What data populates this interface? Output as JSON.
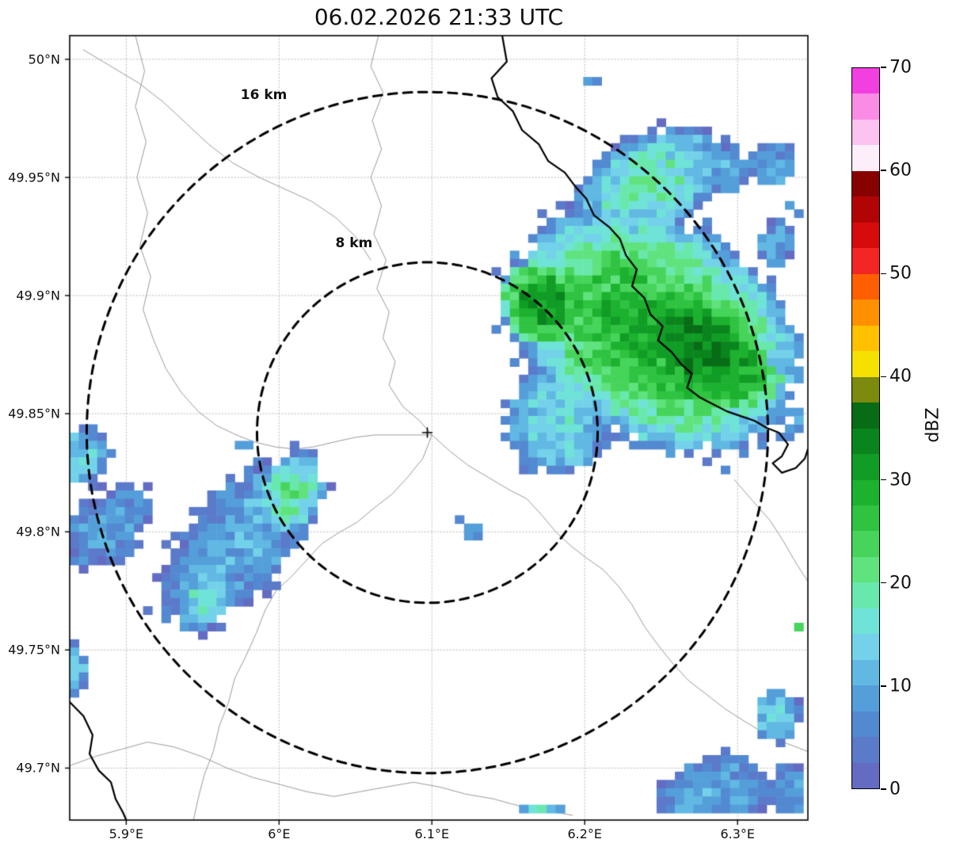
{
  "title": "06.02.2026 21:33 UTC",
  "chart_data": {
    "type": "heatmap",
    "title": "06.02.2026 21:33 UTC",
    "units": "dBZ",
    "grid": true,
    "extent": {
      "lon_min": 5.863,
      "lon_max": 6.346,
      "lat_min": 49.678,
      "lat_max": 50.01
    },
    "x_ticks": [
      {
        "value": 5.9,
        "label": "5.9°E"
      },
      {
        "value": 6.0,
        "label": "6°E"
      },
      {
        "value": 6.1,
        "label": "6.1°E"
      },
      {
        "value": 6.2,
        "label": "6.2°E"
      },
      {
        "value": 6.3,
        "label": "6.3°E"
      }
    ],
    "y_ticks": [
      {
        "value": 50.0,
        "label": "50°N"
      },
      {
        "value": 49.95,
        "label": "49.95°N"
      },
      {
        "value": 49.9,
        "label": "49.9°N"
      },
      {
        "value": 49.85,
        "label": "49.85°N"
      },
      {
        "value": 49.8,
        "label": "49.8°N"
      },
      {
        "value": 49.75,
        "label": "49.75°N"
      },
      {
        "value": 49.7,
        "label": "49.7°N"
      }
    ],
    "radar_center": {
      "lon": 6.097,
      "lat": 49.842,
      "marker": "+"
    },
    "range_rings": [
      {
        "km": 8,
        "label": "8 km",
        "label_lon": 6.049,
        "label_lat": 49.922
      },
      {
        "km": 16,
        "label": "16 km",
        "label_lon": 5.99,
        "label_lat": 49.985
      }
    ],
    "colorbar": {
      "label": "dBZ",
      "min": 0,
      "max": 70,
      "ticks": [
        {
          "value": 0,
          "label": "0"
        },
        {
          "value": 10,
          "label": "10"
        },
        {
          "value": 20,
          "label": "20"
        },
        {
          "value": 30,
          "label": "30"
        },
        {
          "value": 40,
          "label": "40"
        },
        {
          "value": 50,
          "label": "50"
        },
        {
          "value": 60,
          "label": "60"
        },
        {
          "value": 70,
          "label": "70"
        }
      ],
      "colors": [
        "#636bc2",
        "#5b7aca",
        "#5389d1",
        "#549fda",
        "#60b8e3",
        "#73d2ea",
        "#6fe3d7",
        "#69e8ad",
        "#60e37e",
        "#47d45b",
        "#2fc341",
        "#1cb12f",
        "#119c26",
        "#0a851d",
        "#076c15",
        "#7c8a0e",
        "#f5e000",
        "#ffc000",
        "#ff9000",
        "#ff5f00",
        "#f42525",
        "#d70b0b",
        "#b10505",
        "#870101",
        "#fdeffa",
        "#fcc3f0",
        "#fb8ce6",
        "#f23fe0"
      ]
    },
    "cell_size_deg": {
      "dlon": 0.006,
      "dlat": 0.0035
    },
    "echo_clusters": [
      {
        "name": "ne-storm-main",
        "lon": 6.245,
        "lat": 49.885,
        "rx": 0.1,
        "ry": 0.05,
        "rot": -12,
        "base": 5,
        "peak": 29
      },
      {
        "name": "ne-storm-core-east",
        "lon": 6.278,
        "lat": 49.876,
        "rx": 0.048,
        "ry": 0.024,
        "rot": -15,
        "base": 18,
        "peak": 35
      },
      {
        "name": "ne-storm-core-west",
        "lon": 6.172,
        "lat": 49.896,
        "rx": 0.026,
        "ry": 0.018,
        "rot": -10,
        "base": 16,
        "peak": 33
      },
      {
        "name": "ne-storm-sw-edge",
        "lon": 6.183,
        "lat": 49.847,
        "rx": 0.036,
        "ry": 0.024,
        "rot": 0,
        "base": 3,
        "peak": 16
      },
      {
        "name": "ne-storm-north-ext",
        "lon": 6.242,
        "lat": 49.947,
        "rx": 0.052,
        "ry": 0.022,
        "rot": 15,
        "base": 3,
        "peak": 19
      },
      {
        "name": "ne-top-patch-1",
        "lon": 6.292,
        "lat": 49.953,
        "rx": 0.016,
        "ry": 0.011,
        "rot": 0,
        "base": 3,
        "peak": 10
      },
      {
        "name": "ne-top-patch-2",
        "lon": 6.323,
        "lat": 49.955,
        "rx": 0.014,
        "ry": 0.01,
        "rot": 0,
        "base": 3,
        "peak": 9
      },
      {
        "name": "ne-right-patch",
        "lon": 6.325,
        "lat": 49.922,
        "rx": 0.013,
        "ry": 0.01,
        "rot": 0,
        "base": 3,
        "peak": 9
      },
      {
        "name": "west-band",
        "lon": 5.975,
        "lat": 49.797,
        "rx": 0.062,
        "ry": 0.026,
        "rot": 30,
        "base": 2,
        "peak": 11
      },
      {
        "name": "west-band-green",
        "lon": 6.008,
        "lat": 49.816,
        "rx": 0.022,
        "ry": 0.015,
        "rot": 25,
        "base": 8,
        "peak": 21
      },
      {
        "name": "west-band-cyan",
        "lon": 5.952,
        "lat": 49.772,
        "rx": 0.018,
        "ry": 0.012,
        "rot": 20,
        "base": 6,
        "peak": 17
      },
      {
        "name": "west-left-ext",
        "lon": 5.888,
        "lat": 49.802,
        "rx": 0.03,
        "ry": 0.016,
        "rot": 20,
        "base": 2,
        "peak": 9
      },
      {
        "name": "left-edge-patch",
        "lon": 5.87,
        "lat": 49.832,
        "rx": 0.019,
        "ry": 0.013,
        "rot": 0,
        "base": 3,
        "peak": 15
      },
      {
        "name": "left-edge-small",
        "lon": 5.864,
        "lat": 49.742,
        "rx": 0.012,
        "ry": 0.011,
        "rot": 0,
        "base": 3,
        "peak": 13
      },
      {
        "name": "south-east-cluster",
        "lon": 6.282,
        "lat": 49.688,
        "rx": 0.04,
        "ry": 0.018,
        "rot": 8,
        "base": 2,
        "peak": 10
      },
      {
        "name": "south-east-corner",
        "lon": 6.335,
        "lat": 49.69,
        "rx": 0.015,
        "ry": 0.013,
        "rot": 0,
        "base": 2,
        "peak": 9
      },
      {
        "name": "right-lower-patch",
        "lon": 6.325,
        "lat": 49.722,
        "rx": 0.016,
        "ry": 0.012,
        "rot": 0,
        "base": 3,
        "peak": 14
      }
    ],
    "echo_cells": [
      [
        6.168,
        49.682,
        16
      ],
      [
        6.174,
        49.682,
        19
      ],
      [
        6.18,
        49.682,
        10
      ],
      [
        6.186,
        49.682,
        8
      ],
      [
        6.162,
        49.682,
        8
      ],
      [
        6.122,
        49.803,
        9
      ],
      [
        6.128,
        49.803,
        8
      ],
      [
        6.122,
        49.799,
        8
      ],
      [
        6.128,
        49.8,
        7
      ],
      [
        6.118,
        49.806,
        7
      ],
      [
        6.342,
        49.76,
        24
      ],
      [
        6.342,
        49.852,
        9
      ],
      [
        6.342,
        49.846,
        12
      ],
      [
        6.336,
        49.842,
        8
      ],
      [
        6.286,
        49.962,
        8
      ],
      [
        6.292,
        49.96,
        9
      ],
      [
        6.205,
        49.99,
        8
      ],
      [
        6.211,
        49.99,
        7
      ],
      [
        5.976,
        49.838,
        8
      ],
      [
        5.982,
        49.836,
        9
      ],
      [
        6.332,
        49.938,
        8
      ],
      [
        6.34,
        49.934,
        7
      ]
    ],
    "map_lines": {
      "gray": [
        [
          [
            6.065,
            50.01
          ],
          [
            6.06,
            49.997
          ],
          [
            6.068,
            49.986
          ],
          [
            6.061,
            49.974
          ],
          [
            6.067,
            49.962
          ],
          [
            6.06,
            49.95
          ],
          [
            6.067,
            49.938
          ],
          [
            6.062,
            49.926
          ],
          [
            6.07,
            49.915
          ],
          [
            6.064,
            49.903
          ],
          [
            6.072,
            49.893
          ],
          [
            6.068,
            49.882
          ],
          [
            6.076,
            49.872
          ],
          [
            6.072,
            49.862
          ],
          [
            6.081,
            49.853
          ],
          [
            6.092,
            49.847
          ],
          [
            6.1,
            49.841
          ],
          [
            6.094,
            49.831
          ],
          [
            6.084,
            49.823
          ],
          [
            6.074,
            49.816
          ],
          [
            6.062,
            49.81
          ],
          [
            6.051,
            49.804
          ],
          [
            6.04,
            49.8
          ],
          [
            6.028,
            49.795
          ],
          [
            6.018,
            49.788
          ],
          [
            6.008,
            49.781
          ],
          [
            5.998,
            49.775
          ],
          [
            5.991,
            49.767
          ],
          [
            5.985,
            49.757
          ],
          [
            5.978,
            49.747
          ],
          [
            5.971,
            49.738
          ],
          [
            5.967,
            49.728
          ],
          [
            5.961,
            49.718
          ],
          [
            5.957,
            49.707
          ],
          [
            5.951,
            49.697
          ],
          [
            5.947,
            49.687
          ],
          [
            5.944,
            49.678
          ]
        ],
        [
          [
            5.872,
            50.004
          ],
          [
            5.89,
            49.997
          ],
          [
            5.908,
            49.99
          ],
          [
            5.924,
            49.982
          ],
          [
            5.939,
            49.973
          ],
          [
            5.954,
            49.964
          ],
          [
            5.97,
            49.956
          ],
          [
            5.987,
            49.95
          ],
          [
            6.004,
            49.945
          ],
          [
            6.021,
            49.94
          ],
          [
            6.037,
            49.933
          ],
          [
            6.05,
            49.925
          ],
          [
            6.06,
            49.915
          ]
        ],
        [
          [
            5.906,
            50.01
          ],
          [
            5.912,
            49.995
          ],
          [
            5.906,
            49.98
          ],
          [
            5.913,
            49.965
          ],
          [
            5.907,
            49.95
          ],
          [
            5.914,
            49.935
          ],
          [
            5.909,
            49.921
          ],
          [
            5.916,
            49.908
          ],
          [
            5.911,
            49.894
          ],
          [
            5.918,
            49.881
          ],
          [
            5.926,
            49.869
          ],
          [
            5.936,
            49.859
          ],
          [
            5.947,
            49.851
          ],
          [
            5.959,
            49.845
          ],
          [
            5.972,
            49.841
          ],
          [
            5.984,
            49.838
          ],
          [
            5.997,
            49.836
          ],
          [
            6.01,
            49.835
          ],
          [
            6.023,
            49.836
          ],
          [
            6.036,
            49.838
          ],
          [
            6.05,
            49.84
          ],
          [
            6.063,
            49.841
          ],
          [
            6.076,
            49.841
          ],
          [
            6.089,
            49.841
          ],
          [
            6.1,
            49.841
          ]
        ],
        [
          [
            6.1,
            49.841
          ],
          [
            6.112,
            49.834
          ],
          [
            6.124,
            49.828
          ],
          [
            6.137,
            49.823
          ],
          [
            6.15,
            49.818
          ],
          [
            6.162,
            49.814
          ],
          [
            6.172,
            49.807
          ],
          [
            6.181,
            49.8
          ],
          [
            6.191,
            49.794
          ],
          [
            6.201,
            49.789
          ],
          [
            6.212,
            49.784
          ],
          [
            6.222,
            49.777
          ],
          [
            6.231,
            49.769
          ],
          [
            6.239,
            49.76
          ],
          [
            6.248,
            49.752
          ],
          [
            6.258,
            49.744
          ],
          [
            6.268,
            49.737
          ],
          [
            6.28,
            49.731
          ],
          [
            6.292,
            49.725
          ],
          [
            6.304,
            49.72
          ],
          [
            6.317,
            49.715
          ],
          [
            6.33,
            49.711
          ],
          [
            6.346,
            49.707
          ]
        ],
        [
          [
            5.863,
            49.701
          ],
          [
            5.88,
            49.705
          ],
          [
            5.897,
            49.708
          ],
          [
            5.914,
            49.711
          ],
          [
            5.931,
            49.709
          ],
          [
            5.949,
            49.705
          ],
          [
            5.966,
            49.7
          ],
          [
            5.983,
            49.696
          ],
          [
            6.001,
            49.693
          ],
          [
            6.018,
            49.69
          ],
          [
            6.036,
            49.688
          ],
          [
            6.053,
            49.69
          ],
          [
            6.07,
            49.692
          ],
          [
            6.088,
            49.694
          ],
          [
            6.105,
            49.692
          ],
          [
            6.122,
            49.689
          ],
          [
            6.14,
            49.687
          ],
          [
            6.157,
            49.684
          ],
          [
            6.175,
            49.682
          ],
          [
            6.192,
            49.68
          ]
        ],
        [
          [
            6.298,
            49.822
          ],
          [
            6.31,
            49.813
          ],
          [
            6.321,
            49.805
          ],
          [
            6.33,
            49.796
          ],
          [
            6.338,
            49.787
          ],
          [
            6.346,
            49.779
          ]
        ]
      ],
      "black": [
        [
          [
            6.146,
            50.01
          ],
          [
            6.149,
            49.999
          ],
          [
            6.139,
            49.992
          ],
          [
            6.143,
            49.984
          ],
          [
            6.153,
            49.978
          ],
          [
            6.159,
            49.97
          ],
          [
            6.17,
            49.964
          ],
          [
            6.176,
            49.957
          ],
          [
            6.187,
            49.952
          ],
          [
            6.194,
            49.946
          ],
          [
            6.201,
            49.941
          ],
          [
            6.206,
            49.934
          ],
          [
            6.216,
            49.929
          ],
          [
            6.223,
            49.924
          ],
          [
            6.227,
            49.917
          ],
          [
            6.234,
            49.911
          ],
          [
            6.231,
            49.904
          ],
          [
            6.239,
            49.899
          ],
          [
            6.243,
            49.892
          ],
          [
            6.251,
            49.887
          ],
          [
            6.248,
            49.881
          ],
          [
            6.257,
            49.876
          ],
          [
            6.263,
            49.871
          ],
          [
            6.27,
            49.867
          ],
          [
            6.267,
            49.861
          ],
          [
            6.275,
            49.857
          ],
          [
            6.284,
            49.854
          ],
          [
            6.293,
            49.851
          ],
          [
            6.302,
            49.849
          ],
          [
            6.311,
            49.847
          ],
          [
            6.319,
            49.844
          ],
          [
            6.327,
            49.842
          ],
          [
            6.333,
            49.837
          ],
          [
            6.329,
            49.832
          ],
          [
            6.323,
            49.829
          ],
          [
            6.329,
            49.825
          ],
          [
            6.338,
            49.827
          ],
          [
            6.344,
            49.831
          ],
          [
            6.346,
            49.835
          ]
        ],
        [
          [
            5.863,
            49.728
          ],
          [
            5.872,
            49.722
          ],
          [
            5.878,
            49.714
          ],
          [
            5.876,
            49.706
          ],
          [
            5.882,
            49.699
          ],
          [
            5.89,
            49.694
          ],
          [
            5.893,
            49.687
          ],
          [
            5.898,
            49.681
          ],
          [
            5.9,
            49.678
          ]
        ]
      ]
    },
    "styles": {
      "background": "#ffffff",
      "grid_color": "#c0c0c0",
      "gray_line_color": "#9b9b9b",
      "black_line_color": "#000000",
      "ring_color": "#000000",
      "frame_color": "#000000"
    }
  }
}
